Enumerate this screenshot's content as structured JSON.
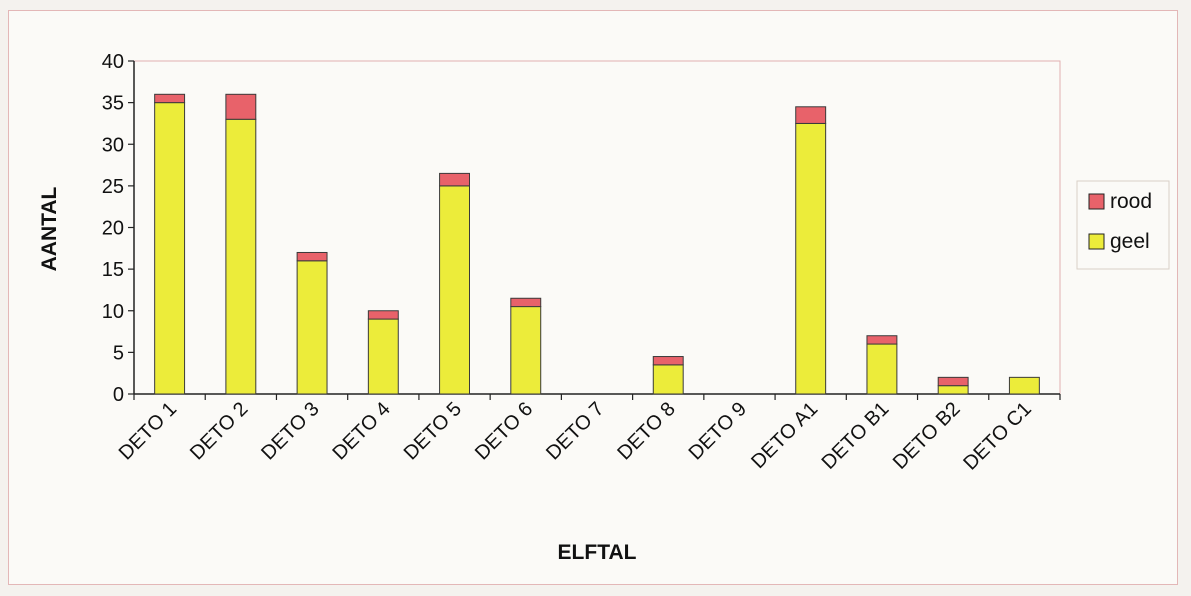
{
  "chart_data": {
    "type": "bar",
    "stacked": true,
    "title": "",
    "xlabel": "ELFTAL",
    "ylabel": "AANTAL",
    "ylim": [
      0,
      40
    ],
    "yticks": [
      0,
      5,
      10,
      15,
      20,
      25,
      30,
      35,
      40
    ],
    "categories": [
      "DETO 1",
      "DETO 2",
      "DETO 3",
      "DETO 4",
      "DETO 5",
      "DETO 6",
      "DETO 7",
      "DETO 8",
      "DETO 9",
      "DETO A1",
      "DETO B1",
      "DETO B2",
      "DETO C1"
    ],
    "series": [
      {
        "name": "geel",
        "color": "#ecec3a",
        "values": [
          35,
          33,
          16,
          9,
          25,
          10.5,
          0,
          3.5,
          0,
          32.5,
          6,
          1,
          2
        ]
      },
      {
        "name": "rood",
        "color": "#e8626a",
        "values": [
          1,
          3,
          1,
          1,
          1.5,
          1,
          0,
          1,
          0,
          2,
          1,
          1,
          0
        ]
      }
    ],
    "legend": {
      "position": "right",
      "order": [
        "rood",
        "geel"
      ]
    },
    "grid": false
  }
}
